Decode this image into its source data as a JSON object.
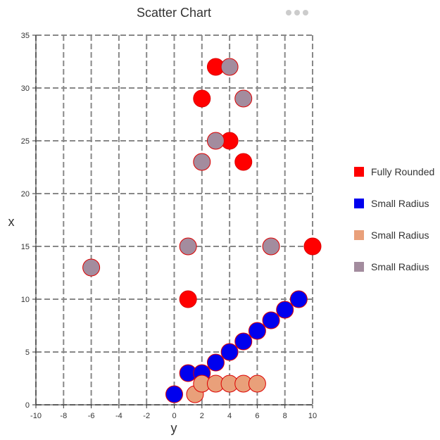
{
  "chart_data": {
    "type": "scatter",
    "title": "Scatter Chart",
    "xlabel": "y",
    "ylabel": "x",
    "xlim": [
      -10,
      10
    ],
    "ylim": [
      0,
      35
    ],
    "xticks": [
      "-10",
      "-8",
      "-6",
      "-4",
      "-2",
      "0",
      "2",
      "4",
      "6",
      "8",
      "10"
    ],
    "yticks": [
      "0",
      "5",
      "10",
      "15",
      "20",
      "25",
      "30",
      "35"
    ],
    "grid": true,
    "legend_position": "right",
    "series": [
      {
        "name": "Fully Rounded",
        "color": "#ff0000",
        "stroke": "#dd0000",
        "points": [
          [
            1,
            10
          ],
          [
            10,
            15
          ],
          [
            2,
            29
          ],
          [
            3,
            32
          ],
          [
            4,
            25
          ],
          [
            5,
            23
          ]
        ]
      },
      {
        "name": "Small Radius",
        "color": "#0000ee",
        "stroke": "#dd0000",
        "points": [
          [
            0,
            1
          ],
          [
            1,
            3
          ],
          [
            2,
            3
          ],
          [
            3,
            4
          ],
          [
            4,
            5
          ],
          [
            5,
            6
          ],
          [
            6,
            7
          ],
          [
            7,
            8
          ],
          [
            8,
            9
          ],
          [
            9,
            10
          ]
        ]
      },
      {
        "name": "Small Radius",
        "color": "#e9a07a",
        "stroke": "#dd0000",
        "points": [
          [
            1.5,
            1
          ],
          [
            2,
            2
          ],
          [
            3,
            2
          ],
          [
            4,
            2
          ],
          [
            5,
            2
          ],
          [
            6,
            2
          ]
        ]
      },
      {
        "name": "Small Radius",
        "color": "#a38c9e",
        "stroke": "#dd0000",
        "points": [
          [
            -6,
            13
          ],
          [
            1,
            15
          ],
          [
            7,
            15
          ],
          [
            2,
            23
          ],
          [
            3,
            25
          ],
          [
            5,
            29
          ],
          [
            4,
            32
          ]
        ]
      }
    ]
  },
  "toolbar": {
    "menu_icon": "more-horizontal-icon"
  }
}
